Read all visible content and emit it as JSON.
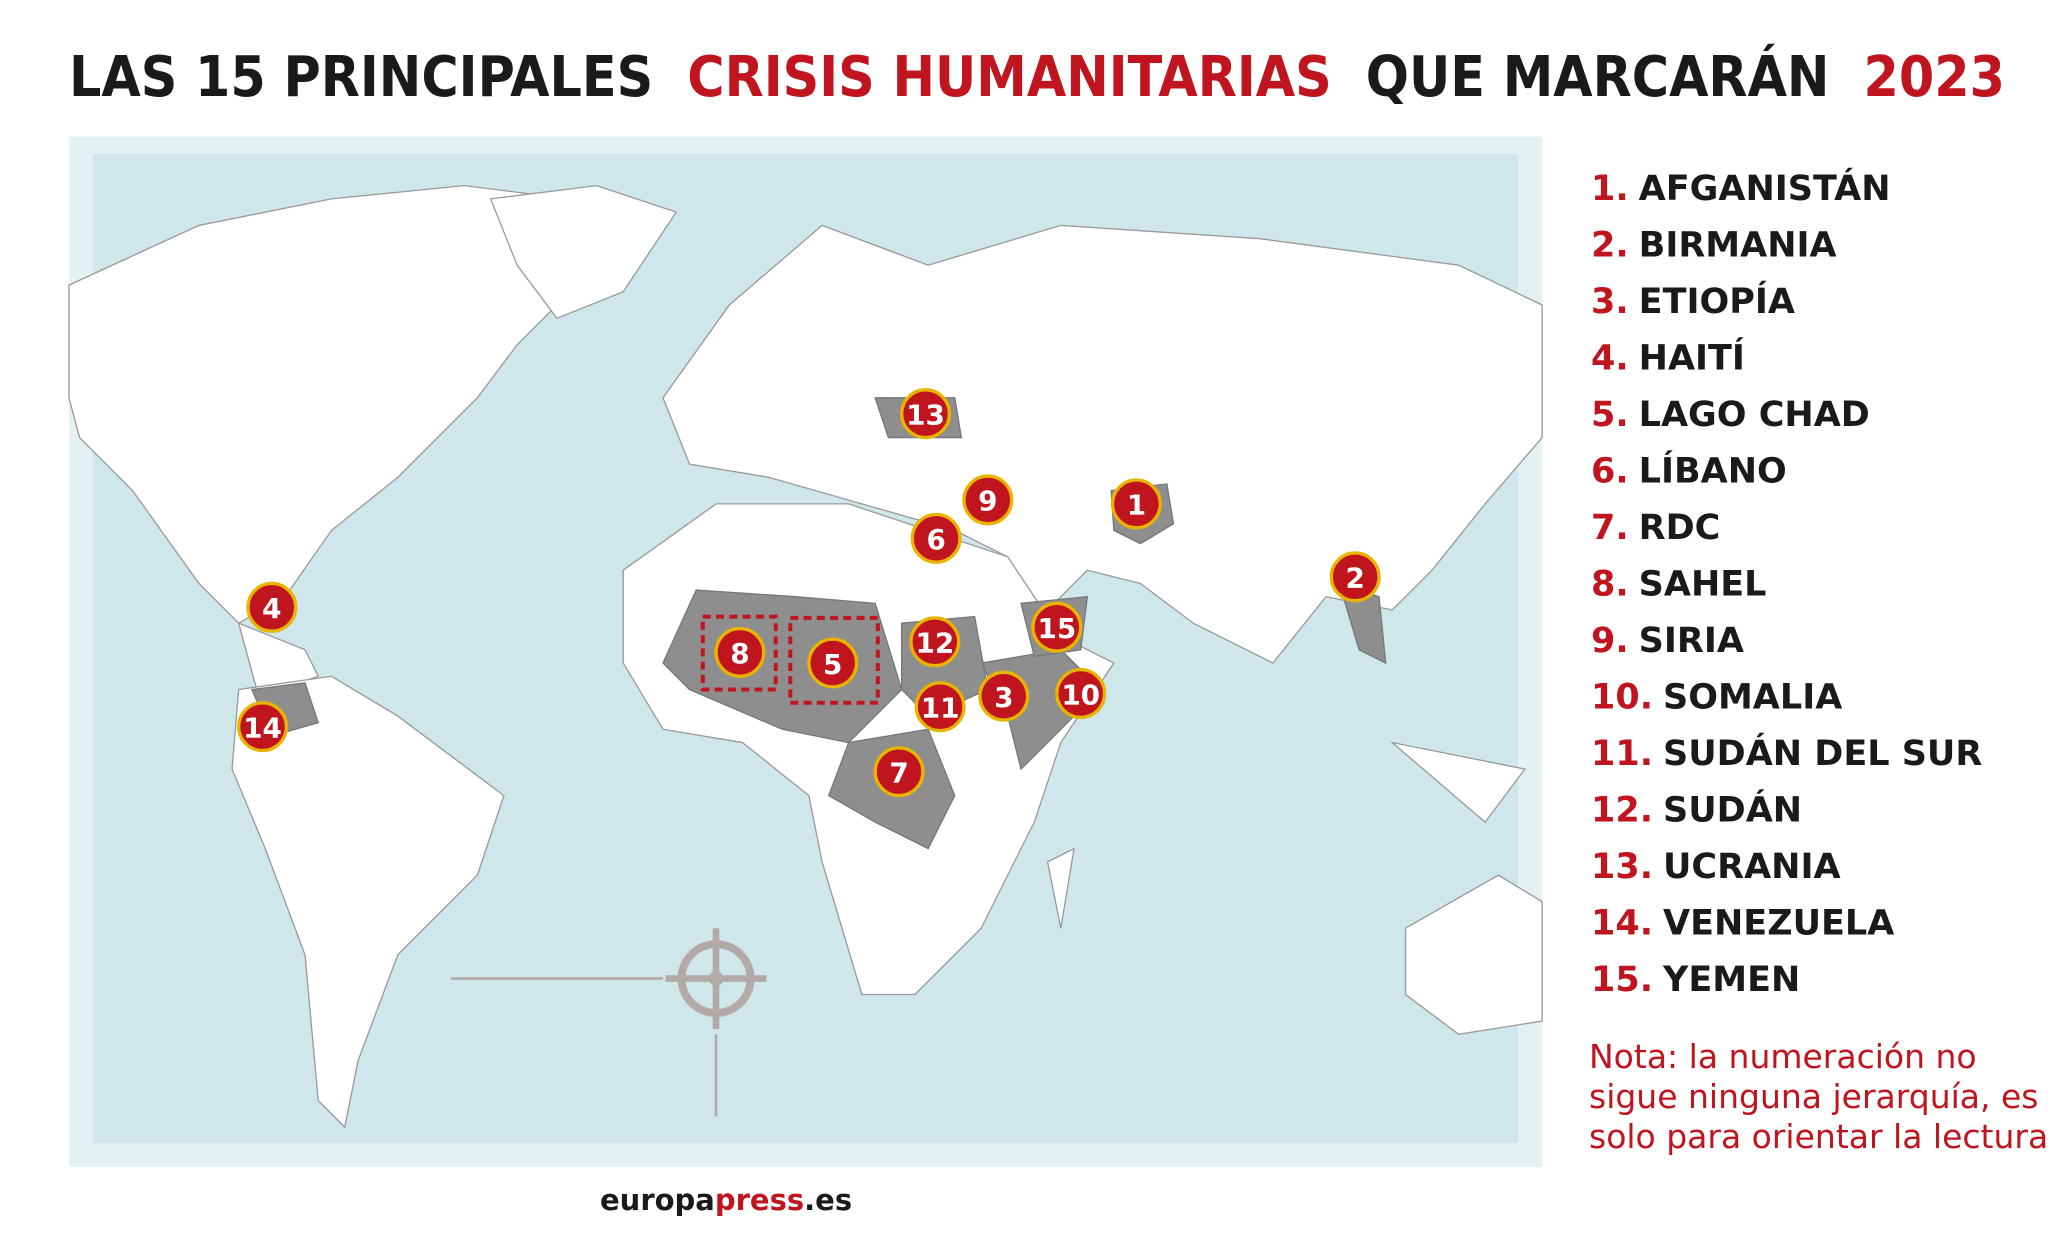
{
  "title": {
    "parts": [
      "LAS 15 PRINCIPALES",
      "CRISIS HUMANITARIAS",
      "QUE MARCARÁN",
      "2023"
    ]
  },
  "legend": {
    "items": [
      {
        "number": "1.",
        "name": "AFGANISTÁN"
      },
      {
        "number": "2.",
        "name": "BIRMANIA"
      },
      {
        "number": "3.",
        "name": "ETIOPÍA"
      },
      {
        "number": "4.",
        "name": "HAITÍ"
      },
      {
        "number": "5.",
        "name": "LAGO CHAD"
      },
      {
        "number": "6.",
        "name": "LÍBANO"
      },
      {
        "number": "7.",
        "name": "RDC"
      },
      {
        "number": "8.",
        "name": "SAHEL"
      },
      {
        "number": "9.",
        "name": "SIRIA"
      },
      {
        "number": "10.",
        "name": "SOMALIA"
      },
      {
        "number": "11.",
        "name": "SUDÁN DEL SUR"
      },
      {
        "number": "12.",
        "name": "SUDÁN"
      },
      {
        "number": "13.",
        "name": "UCRANIA"
      },
      {
        "number": "14.",
        "name": "VENEZUELA"
      },
      {
        "number": "15.",
        "name": "YEMEN"
      }
    ]
  },
  "markers": [
    {
      "label": "1"
    },
    {
      "label": "2"
    },
    {
      "label": "3"
    },
    {
      "label": "4"
    },
    {
      "label": "5"
    },
    {
      "label": "6"
    },
    {
      "label": "7"
    },
    {
      "label": "8"
    },
    {
      "label": "9"
    },
    {
      "label": "10"
    },
    {
      "label": "11"
    },
    {
      "label": "12"
    },
    {
      "label": "13"
    },
    {
      "label": "14"
    },
    {
      "label": "15"
    }
  ],
  "note": {
    "lines": [
      "Nota: la numeración no",
      "sigue ninguna jerarquía, es",
      "solo para orientar la lectura"
    ]
  },
  "source": {
    "parts": [
      "europa",
      "press",
      ".es"
    ]
  }
}
